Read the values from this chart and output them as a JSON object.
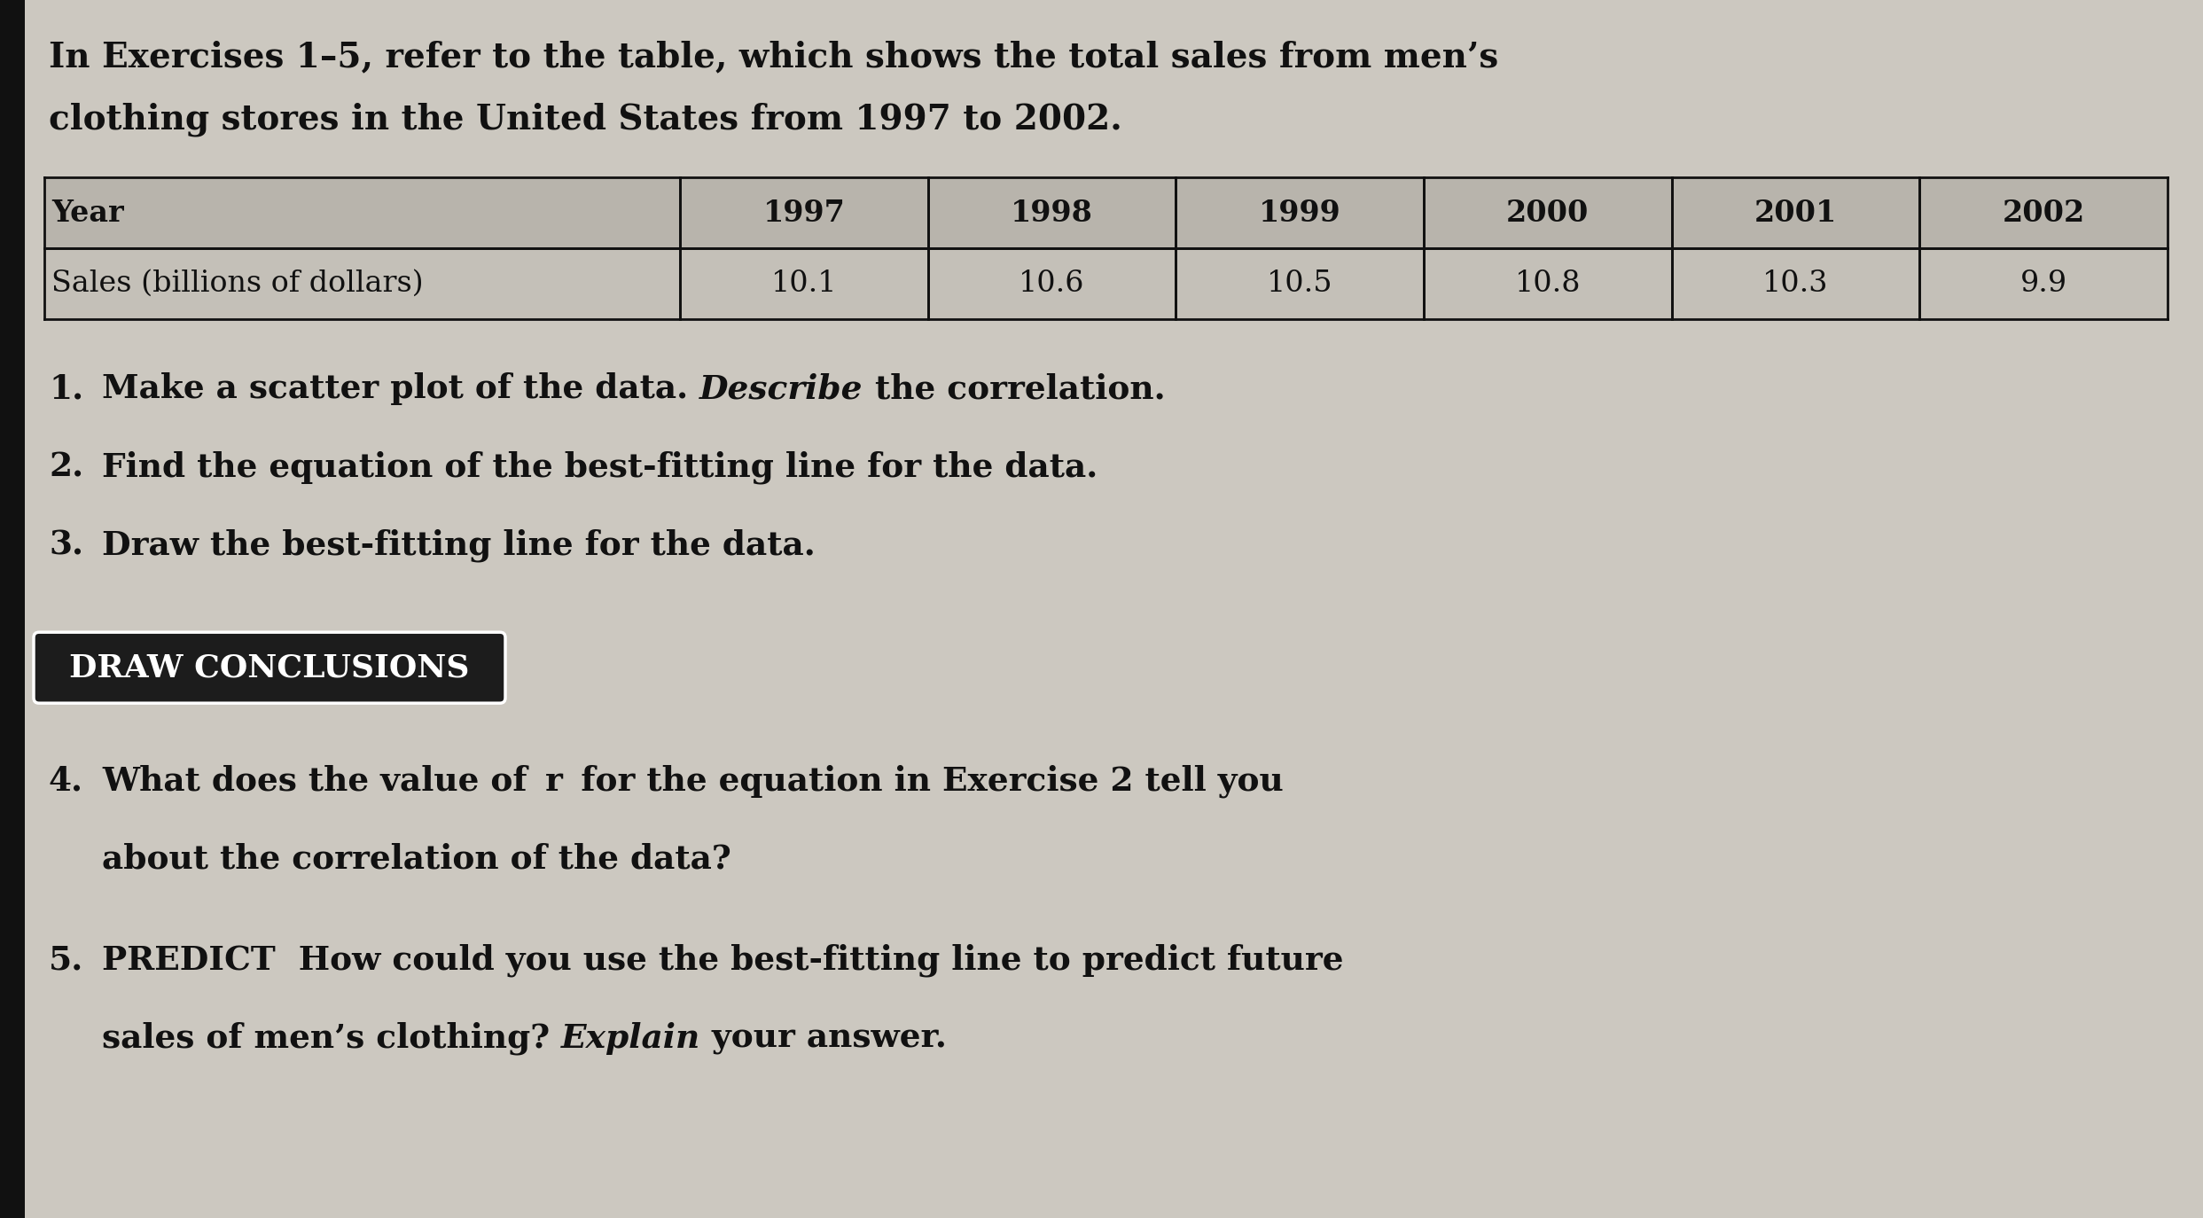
{
  "title_line1": "In Exercises 1–5, refer to the table, which shows the total sales from men’s",
  "title_line2": "clothing stores in the United States from 1997 to 2002.",
  "table_headers": [
    "Year",
    "1997",
    "1998",
    "1999",
    "2000",
    "2001",
    "2002"
  ],
  "table_row_label": "Sales (billions of dollars)",
  "table_values": [
    "10.1",
    "10.6",
    "10.5",
    "10.8",
    "10.3",
    "9.9"
  ],
  "exercise1_num": "1.",
  "exercise1_text": "Make a scatter plot of the data. ",
  "exercise1_italic": "Describe",
  "exercise1_end": " the correlation.",
  "exercise2_num": "2.",
  "exercise2_text": "Find the equation of the best-fitting line for the data.",
  "exercise3_num": "3.",
  "exercise3_text": "Draw the best-fitting line for the data.",
  "section_label": "Draw Conclusions",
  "exercise4_num": "4.",
  "exercise4_text": "What does the value of  r  for the equation in Exercise 2 tell you",
  "exercise4_line2": "about the correlation of the data?",
  "exercise5_num": "5.",
  "exercise5_line1": "PREDICT  How could you use the best-fitting line to predict future",
  "exercise5_line2": "sales of men’s clothing? ",
  "exercise5_italic": "Explain",
  "exercise5_end": " your answer.",
  "bg_color": "#ccc8c0",
  "text_color": "#111111",
  "table_border_color": "#111111",
  "section_bg": "#1c1c1c",
  "section_text_color": "#ffffff",
  "left_bar_color": "#111111",
  "table_header_bg": "#b8b4ac",
  "table_row_bg": "#c4c0b8",
  "font_size_title": 28,
  "font_size_table_header": 24,
  "font_size_table_data": 24,
  "font_size_body": 27,
  "font_size_section": 26
}
